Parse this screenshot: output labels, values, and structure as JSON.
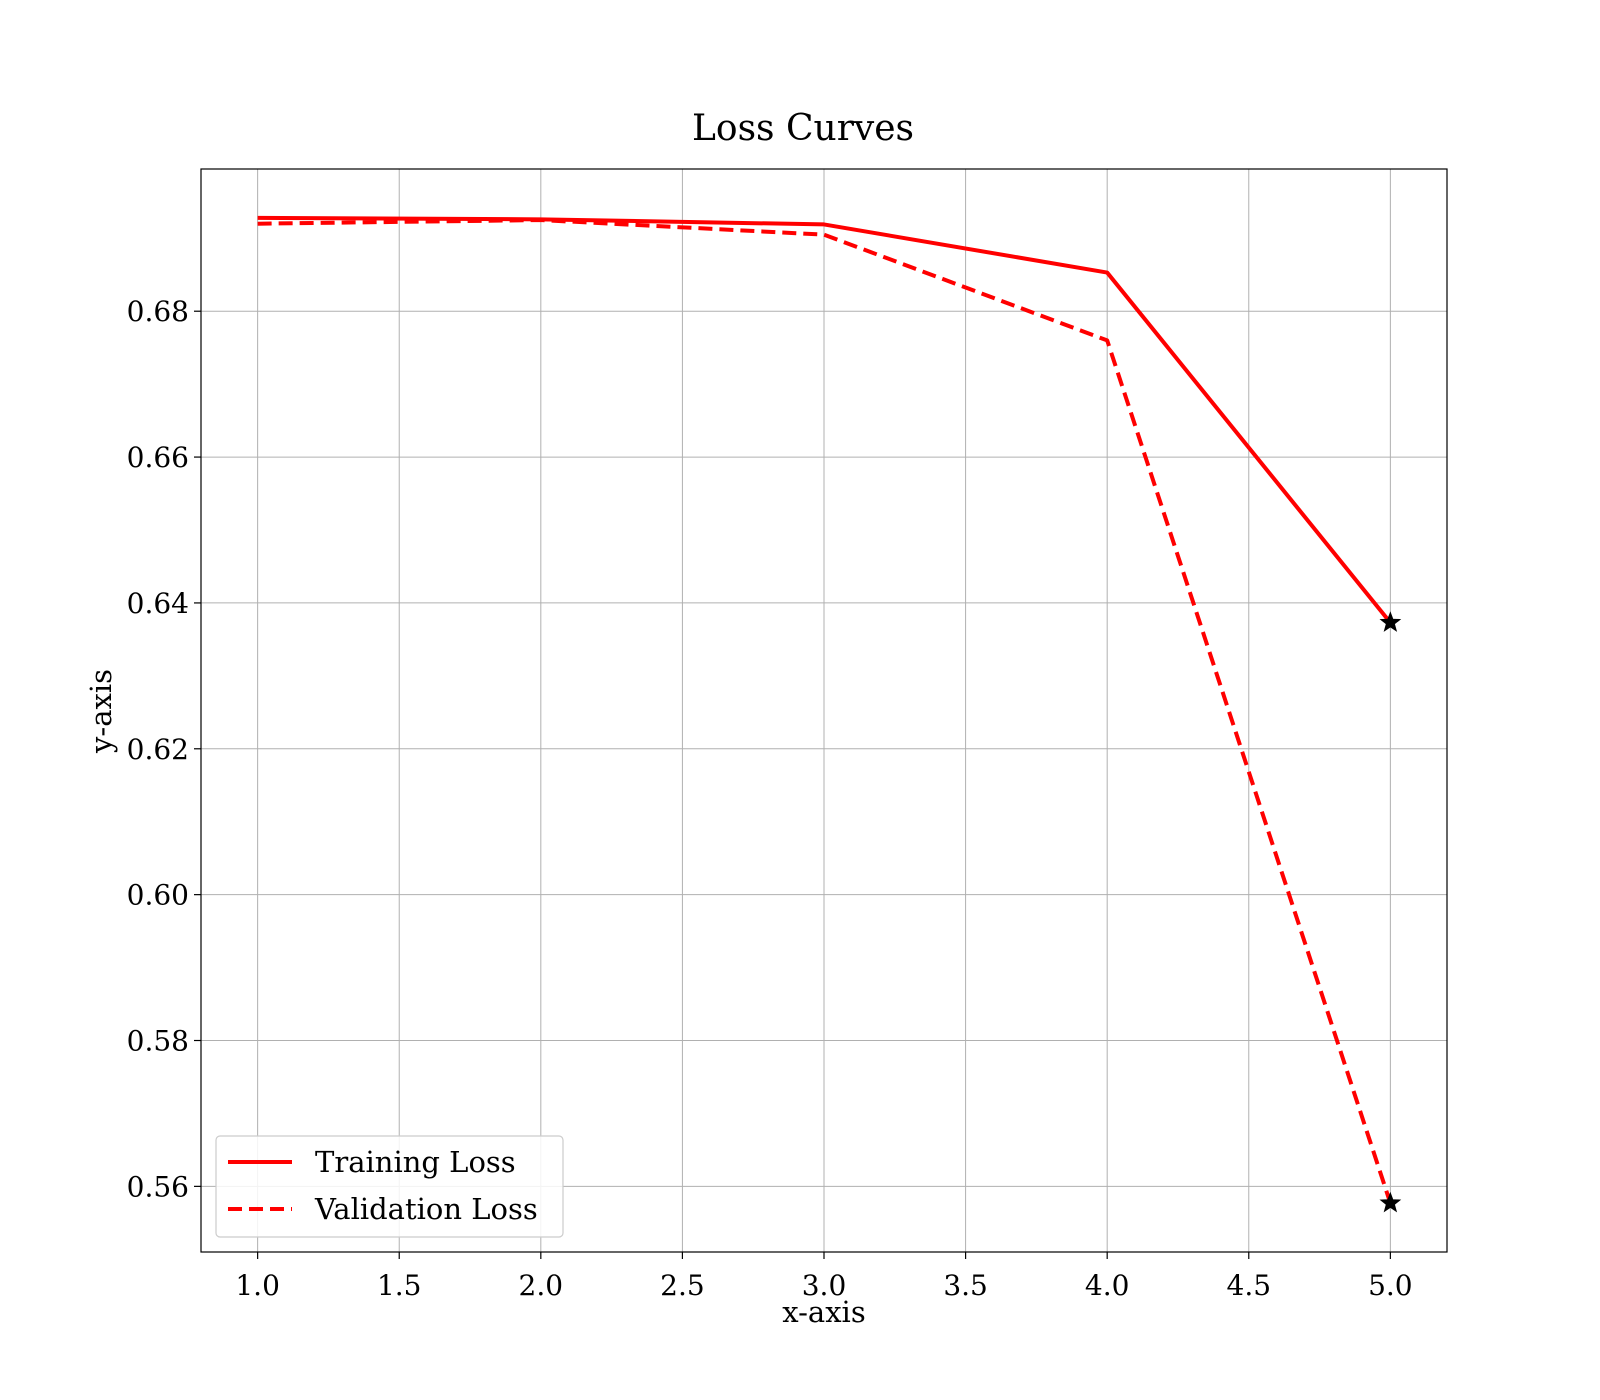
{
  "chart_data": {
    "type": "line",
    "title": "Loss Curves",
    "xlabel": "x-axis",
    "ylabel": "y-axis",
    "xlim": [
      0.8,
      5.2
    ],
    "ylim": [
      0.551,
      0.6995
    ],
    "x_ticks": [
      "1.0",
      "1.5",
      "2.0",
      "2.5",
      "3.0",
      "3.5",
      "4.0",
      "4.5",
      "5.0"
    ],
    "y_ticks": [
      "0.56",
      "0.58",
      "0.60",
      "0.62",
      "0.64",
      "0.66",
      "0.68"
    ],
    "grid": true,
    "legend_position": "lower-left",
    "x": [
      1,
      2,
      3,
      4,
      5
    ],
    "series": [
      {
        "name": "Training Loss",
        "values": [
          0.6928,
          0.6926,
          0.6919,
          0.6853,
          0.6373
        ],
        "color": "#ff0000",
        "line_style": "solid",
        "end_marker": "star"
      },
      {
        "name": "Validation Loss",
        "values": [
          0.692,
          0.6925,
          0.6905,
          0.676,
          0.5577
        ],
        "color": "#ff0000",
        "line_style": "dashed",
        "end_marker": "star"
      }
    ]
  }
}
